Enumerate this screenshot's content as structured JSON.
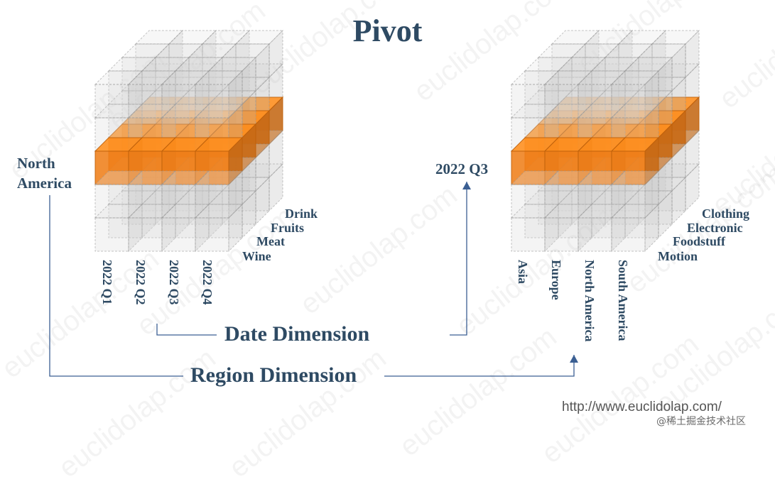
{
  "title": "Pivot",
  "left_cube": {
    "highlight_label": "North America",
    "column_labels": [
      "2022 Q1",
      "2022 Q2",
      "2022 Q3",
      "2022 Q4"
    ],
    "depth_labels": [
      "Drink",
      "Fruits",
      "Meat",
      "Wine"
    ]
  },
  "right_cube": {
    "highlight_label": "2022 Q3",
    "column_labels": [
      "Asia",
      "Europe",
      "North America",
      "South America"
    ],
    "depth_labels": [
      "Clothing",
      "Electronic",
      "Foodstuff",
      "Motion"
    ]
  },
  "date_dimension": "Date Dimension",
  "region_dimension": "Region Dimension",
  "watermark": "euclidolap.com",
  "url": "http://www.euclidolap.com/",
  "source": "@稀土掘金技术社区",
  "colors": {
    "orange": "#ef7f1a",
    "text": "#2e4a63",
    "arrow": "#3b5f93",
    "grey_cube": "#d6d6d6"
  }
}
